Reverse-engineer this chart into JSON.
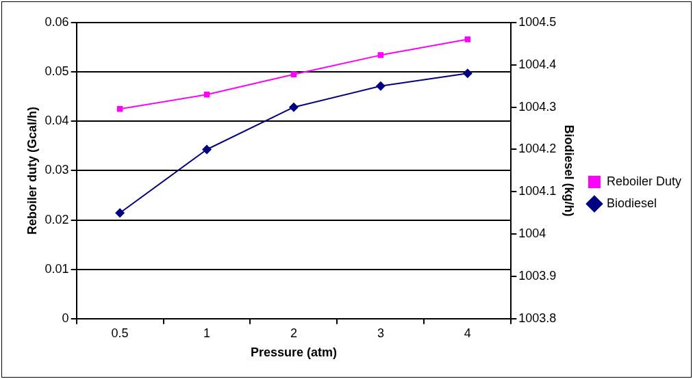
{
  "chart_data": {
    "type": "line",
    "xlabel": "Pressure (atm)",
    "ylabel": "Reboiler duty (Gcal/h)",
    "y2label": "Biodiesel (kg/h)",
    "categories": [
      "0.5",
      "1",
      "2",
      "3",
      "4"
    ],
    "series": [
      {
        "name": "Reboiler Duty",
        "color": "#ff00ff",
        "marker": "square",
        "values": [
          0.0425,
          0.0454,
          0.0495,
          0.0534,
          0.0566
        ]
      },
      {
        "name": "Biodiesel",
        "color": "#000080",
        "marker": "diamond",
        "axis": "y2",
        "values": [
          1004.05,
          1004.2,
          1004.3,
          1004.35,
          1004.38
        ]
      }
    ],
    "ylim": [
      0,
      0.06
    ],
    "yticks": [
      0,
      0.01,
      0.02,
      0.03,
      0.04,
      0.05,
      0.06
    ],
    "y2lim": [
      1003.8,
      1004.5
    ],
    "y2ticks": [
      1003.8,
      1003.9,
      1004,
      1004.1,
      1004.2,
      1004.3,
      1004.4,
      1004.5
    ],
    "grid": "y",
    "legend": "right"
  }
}
